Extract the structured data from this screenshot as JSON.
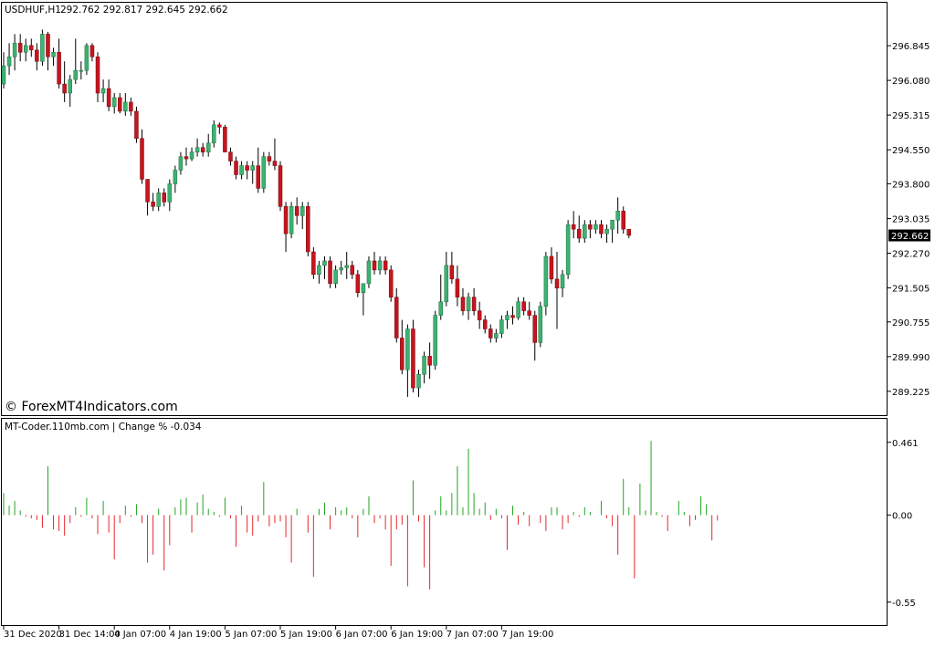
{
  "window": {
    "symbol_timeframe": "USDHUF,H1",
    "ohlc_header": "292.762 292.817 292.645 292.662",
    "watermark": "© ForexMT4Indicators.com"
  },
  "indicator": {
    "label": "MT-Coder.110mb.com | Change % -0.034"
  },
  "colors": {
    "bull": "#3cb371",
    "bear": "#c8141e",
    "hist_up": "#22a522",
    "hist_down": "#e8262b",
    "frame": "#000000"
  },
  "chart_data": [
    {
      "type": "candlestick",
      "title": "USDHUF,H1",
      "ylim": [
        288.8,
        297.45
      ],
      "y_ticks": [
        "296.845",
        "296.080",
        "295.315",
        "294.550",
        "293.800",
        "293.035",
        "292.270",
        "291.505",
        "290.755",
        "289.990",
        "289.225"
      ],
      "y_tick_values": [
        296.845,
        296.08,
        295.315,
        294.55,
        293.8,
        293.035,
        292.27,
        291.505,
        290.755,
        289.99,
        289.225
      ],
      "current_price_label": "292.662",
      "current_price": 292.662,
      "candles": [
        {
          "o": 296.0,
          "h": 296.7,
          "l": 295.9,
          "c": 296.4
        },
        {
          "o": 296.4,
          "h": 296.9,
          "l": 296.2,
          "c": 296.6
        },
        {
          "o": 296.6,
          "h": 297.1,
          "l": 296.3,
          "c": 296.9
        },
        {
          "o": 296.9,
          "h": 297.1,
          "l": 296.5,
          "c": 296.7
        },
        {
          "o": 296.7,
          "h": 297.0,
          "l": 296.5,
          "c": 296.85
        },
        {
          "o": 296.85,
          "h": 297.0,
          "l": 296.6,
          "c": 296.75
        },
        {
          "o": 296.75,
          "h": 296.9,
          "l": 296.3,
          "c": 296.5
        },
        {
          "o": 296.5,
          "h": 297.2,
          "l": 296.4,
          "c": 297.1
        },
        {
          "o": 297.1,
          "h": 297.15,
          "l": 296.3,
          "c": 296.6
        },
        {
          "o": 296.6,
          "h": 296.8,
          "l": 296.4,
          "c": 296.7
        },
        {
          "o": 296.7,
          "h": 297.0,
          "l": 295.9,
          "c": 296.0
        },
        {
          "o": 296.0,
          "h": 296.5,
          "l": 295.6,
          "c": 295.8
        },
        {
          "o": 295.8,
          "h": 296.2,
          "l": 295.5,
          "c": 296.1
        },
        {
          "o": 296.1,
          "h": 297.0,
          "l": 296.0,
          "c": 296.3
        },
        {
          "o": 296.3,
          "h": 296.5,
          "l": 296.1,
          "c": 296.3
        },
        {
          "o": 296.3,
          "h": 296.9,
          "l": 296.2,
          "c": 296.85
        },
        {
          "o": 296.85,
          "h": 296.9,
          "l": 296.5,
          "c": 296.6
        },
        {
          "o": 296.6,
          "h": 296.7,
          "l": 295.6,
          "c": 295.8
        },
        {
          "o": 295.8,
          "h": 296.1,
          "l": 295.6,
          "c": 295.9
        },
        {
          "o": 295.9,
          "h": 296.1,
          "l": 295.4,
          "c": 295.5
        },
        {
          "o": 295.5,
          "h": 295.8,
          "l": 295.35,
          "c": 295.7
        },
        {
          "o": 295.7,
          "h": 295.8,
          "l": 295.35,
          "c": 295.4
        },
        {
          "o": 295.4,
          "h": 295.8,
          "l": 295.3,
          "c": 295.6
        },
        {
          "o": 295.6,
          "h": 295.7,
          "l": 295.3,
          "c": 295.4
        },
        {
          "o": 295.4,
          "h": 295.5,
          "l": 294.7,
          "c": 294.8
        },
        {
          "o": 294.8,
          "h": 295.0,
          "l": 293.8,
          "c": 293.9
        },
        {
          "o": 293.9,
          "h": 293.9,
          "l": 293.1,
          "c": 293.4
        },
        {
          "o": 293.4,
          "h": 293.6,
          "l": 293.2,
          "c": 293.3
        },
        {
          "o": 293.3,
          "h": 293.7,
          "l": 293.2,
          "c": 293.6
        },
        {
          "o": 293.6,
          "h": 293.7,
          "l": 293.3,
          "c": 293.4
        },
        {
          "o": 293.4,
          "h": 293.9,
          "l": 293.2,
          "c": 293.8
        },
        {
          "o": 293.8,
          "h": 294.2,
          "l": 293.6,
          "c": 294.1
        },
        {
          "o": 294.1,
          "h": 294.5,
          "l": 294.0,
          "c": 294.4
        },
        {
          "o": 294.4,
          "h": 294.6,
          "l": 294.2,
          "c": 294.35
        },
        {
          "o": 294.35,
          "h": 294.6,
          "l": 294.3,
          "c": 294.5
        },
        {
          "o": 294.5,
          "h": 294.8,
          "l": 294.4,
          "c": 294.6
        },
        {
          "o": 294.6,
          "h": 294.7,
          "l": 294.4,
          "c": 294.5
        },
        {
          "o": 294.5,
          "h": 294.9,
          "l": 294.4,
          "c": 294.7
        },
        {
          "o": 294.7,
          "h": 295.2,
          "l": 294.6,
          "c": 295.1
        },
        {
          "o": 295.1,
          "h": 295.15,
          "l": 294.9,
          "c": 295.05
        },
        {
          "o": 295.05,
          "h": 295.1,
          "l": 294.5,
          "c": 294.5
        },
        {
          "o": 294.5,
          "h": 294.6,
          "l": 294.2,
          "c": 294.3
        },
        {
          "o": 294.3,
          "h": 294.4,
          "l": 293.9,
          "c": 294.0
        },
        {
          "o": 294.0,
          "h": 294.3,
          "l": 293.9,
          "c": 294.2
        },
        {
          "o": 294.2,
          "h": 294.3,
          "l": 293.9,
          "c": 294.1
        },
        {
          "o": 294.1,
          "h": 294.3,
          "l": 293.8,
          "c": 294.2
        },
        {
          "o": 294.2,
          "h": 294.6,
          "l": 293.6,
          "c": 293.7
        },
        {
          "o": 293.7,
          "h": 294.5,
          "l": 293.6,
          "c": 294.4
        },
        {
          "o": 294.4,
          "h": 294.5,
          "l": 294.2,
          "c": 294.3
        },
        {
          "o": 294.3,
          "h": 294.8,
          "l": 294.1,
          "c": 294.2
        },
        {
          "o": 294.2,
          "h": 294.3,
          "l": 293.2,
          "c": 293.3
        },
        {
          "o": 293.3,
          "h": 293.4,
          "l": 292.3,
          "c": 292.7
        },
        {
          "o": 292.7,
          "h": 293.4,
          "l": 292.6,
          "c": 293.3
        },
        {
          "o": 293.3,
          "h": 293.5,
          "l": 292.9,
          "c": 293.1
        },
        {
          "o": 293.1,
          "h": 293.4,
          "l": 292.8,
          "c": 293.3
        },
        {
          "o": 293.3,
          "h": 293.4,
          "l": 292.2,
          "c": 292.3
        },
        {
          "o": 292.3,
          "h": 292.4,
          "l": 291.7,
          "c": 291.8
        },
        {
          "o": 291.8,
          "h": 292.1,
          "l": 291.6,
          "c": 292.0
        },
        {
          "o": 292.0,
          "h": 292.2,
          "l": 291.7,
          "c": 292.1
        },
        {
          "o": 292.1,
          "h": 292.2,
          "l": 291.5,
          "c": 291.6
        },
        {
          "o": 291.6,
          "h": 292.0,
          "l": 291.5,
          "c": 291.9
        },
        {
          "o": 291.9,
          "h": 292.1,
          "l": 291.8,
          "c": 291.95
        },
        {
          "o": 291.95,
          "h": 292.3,
          "l": 291.7,
          "c": 292.0
        },
        {
          "o": 292.0,
          "h": 292.1,
          "l": 291.7,
          "c": 291.8
        },
        {
          "o": 291.8,
          "h": 291.9,
          "l": 291.3,
          "c": 291.4
        },
        {
          "o": 291.4,
          "h": 291.6,
          "l": 290.9,
          "c": 291.6
        },
        {
          "o": 291.6,
          "h": 292.2,
          "l": 291.5,
          "c": 292.1
        },
        {
          "o": 292.1,
          "h": 292.3,
          "l": 291.8,
          "c": 291.9
        },
        {
          "o": 291.9,
          "h": 292.2,
          "l": 291.8,
          "c": 292.1
        },
        {
          "o": 292.1,
          "h": 292.2,
          "l": 291.8,
          "c": 291.9
        },
        {
          "o": 291.9,
          "h": 292.0,
          "l": 291.2,
          "c": 291.3
        },
        {
          "o": 291.3,
          "h": 291.5,
          "l": 290.3,
          "c": 290.4
        },
        {
          "o": 290.4,
          "h": 290.8,
          "l": 289.6,
          "c": 289.7
        },
        {
          "o": 289.7,
          "h": 290.7,
          "l": 289.1,
          "c": 290.6
        },
        {
          "o": 290.6,
          "h": 290.8,
          "l": 289.2,
          "c": 289.3
        },
        {
          "o": 289.3,
          "h": 289.7,
          "l": 289.1,
          "c": 289.6
        },
        {
          "o": 289.6,
          "h": 290.1,
          "l": 289.4,
          "c": 290.0
        },
        {
          "o": 290.0,
          "h": 290.3,
          "l": 289.5,
          "c": 289.8
        },
        {
          "o": 289.8,
          "h": 291.0,
          "l": 289.7,
          "c": 290.9
        },
        {
          "o": 290.9,
          "h": 291.8,
          "l": 290.8,
          "c": 291.2
        },
        {
          "o": 291.2,
          "h": 292.3,
          "l": 291.1,
          "c": 292.0
        },
        {
          "o": 292.0,
          "h": 292.3,
          "l": 291.6,
          "c": 291.7
        },
        {
          "o": 291.7,
          "h": 292.0,
          "l": 291.1,
          "c": 291.3
        },
        {
          "o": 291.3,
          "h": 291.5,
          "l": 290.9,
          "c": 291.0
        },
        {
          "o": 291.0,
          "h": 291.4,
          "l": 290.8,
          "c": 291.3
        },
        {
          "o": 291.3,
          "h": 291.5,
          "l": 290.9,
          "c": 291.0
        },
        {
          "o": 291.0,
          "h": 291.2,
          "l": 290.6,
          "c": 290.8
        },
        {
          "o": 290.8,
          "h": 290.9,
          "l": 290.5,
          "c": 290.6
        },
        {
          "o": 290.6,
          "h": 290.7,
          "l": 290.3,
          "c": 290.4
        },
        {
          "o": 290.4,
          "h": 290.6,
          "l": 290.3,
          "c": 290.5
        },
        {
          "o": 290.5,
          "h": 290.9,
          "l": 290.4,
          "c": 290.8
        },
        {
          "o": 290.8,
          "h": 291.0,
          "l": 290.6,
          "c": 290.9
        },
        {
          "o": 290.9,
          "h": 291.1,
          "l": 290.7,
          "c": 290.85
        },
        {
          "o": 290.85,
          "h": 291.3,
          "l": 290.8,
          "c": 291.2
        },
        {
          "o": 291.2,
          "h": 291.3,
          "l": 290.9,
          "c": 291.0
        },
        {
          "o": 291.0,
          "h": 291.2,
          "l": 290.8,
          "c": 290.9
        },
        {
          "o": 290.9,
          "h": 291.0,
          "l": 289.9,
          "c": 290.3
        },
        {
          "o": 290.3,
          "h": 291.2,
          "l": 290.2,
          "c": 291.1
        },
        {
          "o": 291.1,
          "h": 292.3,
          "l": 290.9,
          "c": 292.2
        },
        {
          "o": 292.2,
          "h": 292.4,
          "l": 291.6,
          "c": 291.7
        },
        {
          "o": 291.7,
          "h": 292.3,
          "l": 290.6,
          "c": 291.5
        },
        {
          "o": 291.5,
          "h": 291.9,
          "l": 291.3,
          "c": 291.8
        },
        {
          "o": 291.8,
          "h": 293.0,
          "l": 291.7,
          "c": 292.9
        },
        {
          "o": 292.9,
          "h": 293.2,
          "l": 292.6,
          "c": 292.8
        },
        {
          "o": 292.8,
          "h": 293.1,
          "l": 292.5,
          "c": 292.6
        },
        {
          "o": 292.6,
          "h": 293.0,
          "l": 292.5,
          "c": 292.9
        },
        {
          "o": 292.9,
          "h": 293.0,
          "l": 292.6,
          "c": 292.8
        },
        {
          "o": 292.8,
          "h": 293.0,
          "l": 292.7,
          "c": 292.9
        },
        {
          "o": 292.9,
          "h": 293.0,
          "l": 292.6,
          "c": 292.7
        },
        {
          "o": 292.7,
          "h": 292.9,
          "l": 292.5,
          "c": 292.8
        },
        {
          "o": 292.8,
          "h": 293.0,
          "l": 292.5,
          "c": 293.0
        },
        {
          "o": 293.0,
          "h": 293.5,
          "l": 292.7,
          "c": 293.2
        },
        {
          "o": 293.2,
          "h": 293.3,
          "l": 292.7,
          "c": 292.8
        },
        {
          "o": 292.8,
          "h": 292.8,
          "l": 292.6,
          "c": 292.662
        }
      ]
    },
    {
      "type": "bar",
      "title": "MT-Coder.110mb.com | Change % -0.034",
      "ylim": [
        -0.62,
        0.5
      ],
      "y_ticks": [
        "0.461",
        "0.00",
        "-0.55"
      ],
      "y_tick_values": [
        0.461,
        0.0,
        -0.55
      ],
      "x_ticks": [
        "31 Dec 2020",
        "31 Dec 14:00",
        "4 Jan 07:00",
        "4 Jan 19:00",
        "5 Jan 07:00",
        "5 Jan 19:00",
        "6 Jan 07:00",
        "6 Jan 19:00",
        "7 Jan 07:00",
        "7 Jan 19:00"
      ],
      "x_tick_positions": [
        0,
        10,
        20,
        30,
        40,
        50,
        60,
        70,
        80,
        90
      ],
      "values": [
        0.14,
        0.06,
        0.09,
        0.03,
        -0.01,
        -0.02,
        -0.03,
        -0.08,
        0.31,
        -0.09,
        -0.1,
        -0.13,
        -0.05,
        0.05,
        -0.01,
        0.11,
        -0.02,
        -0.12,
        0.09,
        -0.11,
        -0.28,
        -0.05,
        0.06,
        -0.01,
        0.07,
        -0.05,
        -0.3,
        -0.25,
        0.04,
        -0.35,
        -0.19,
        0.05,
        0.1,
        0.11,
        -0.11,
        0.08,
        0.13,
        0.04,
        0.02,
        -0.01,
        0.11,
        -0.02,
        -0.2,
        0.06,
        -0.11,
        -0.13,
        -0.04,
        0.21,
        -0.07,
        -0.05,
        -0.04,
        -0.14,
        -0.3,
        0.04,
        0.0,
        -0.11,
        -0.39,
        0.04,
        0.08,
        -0.09,
        0.05,
        0.03,
        0.05,
        -0.02,
        -0.14,
        0.04,
        0.12,
        -0.05,
        -0.02,
        -0.09,
        -0.32,
        -0.09,
        -0.06,
        -0.45,
        0.22,
        -0.04,
        -0.33,
        -0.47,
        0.03,
        0.12,
        0.03,
        0.14,
        0.31,
        0.05,
        0.42,
        0.14,
        0.04,
        0.08,
        -0.03,
        0.04,
        -0.02,
        -0.22,
        0.06,
        -0.06,
        0.02,
        -0.07,
        0.0,
        -0.05,
        -0.1,
        0.05,
        0.05,
        -0.09,
        -0.05,
        0.02,
        -0.01,
        0.05,
        0.02,
        0.0,
        0.09,
        -0.02,
        -0.07,
        -0.25,
        0.23,
        0.05,
        -0.4,
        0.2,
        0.03,
        0.47,
        0.02,
        -0.01,
        -0.1,
        0.0,
        0.09,
        0.02,
        -0.07,
        -0.03,
        0.12,
        0.07,
        -0.16,
        -0.034
      ]
    }
  ]
}
